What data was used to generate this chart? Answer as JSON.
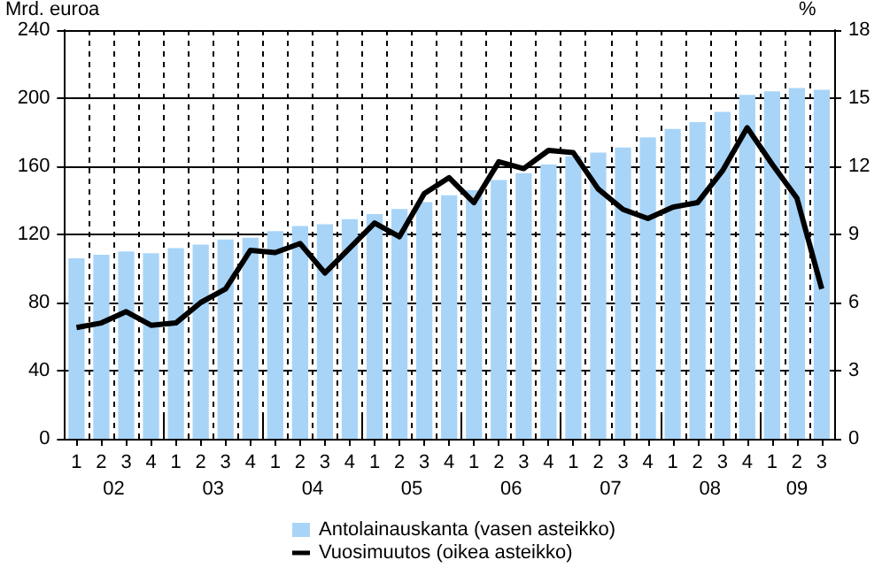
{
  "chart_data": {
    "type": "bar",
    "ylabel": "Mrd. euroa",
    "y2label": "%",
    "categories": [
      "1",
      "2",
      "3",
      "4",
      "1",
      "2",
      "3",
      "4",
      "1",
      "2",
      "3",
      "4",
      "1",
      "2",
      "3",
      "4",
      "1",
      "2",
      "3",
      "4",
      "1",
      "2",
      "3",
      "4",
      "1",
      "2",
      "3",
      "4",
      "1",
      "2",
      "3"
    ],
    "annotations": [
      "02",
      "03",
      "04",
      "05",
      "06",
      "07",
      "08",
      "09"
    ],
    "series": [
      {
        "name": "Antolainauskanta (vasen asteikko)",
        "color": "#a8d4f8",
        "values": [
          106,
          108,
          110,
          109,
          112,
          114,
          117,
          118,
          122,
          125,
          126,
          129,
          132,
          135,
          139,
          143,
          146,
          152,
          156,
          161,
          166,
          168,
          171,
          177,
          182,
          186,
          192,
          202,
          204,
          206,
          205
        ]
      },
      {
        "name": "Vuosimuutos (oikea asteikko)",
        "type": "line",
        "axis": "y2",
        "color": "#000000",
        "marker": "none",
        "values": [
          4.9,
          5.1,
          5.6,
          5.0,
          5.1,
          6.0,
          6.6,
          8.3,
          8.2,
          8.6,
          7.3,
          8.4,
          9.5,
          8.9,
          10.8,
          11.5,
          10.4,
          12.2,
          11.9,
          12.7,
          12.6,
          11.0,
          10.1,
          9.7,
          10.2,
          10.4,
          11.8,
          13.7,
          12.1,
          10.6,
          6.6
        ]
      }
    ],
    "ylim": [
      0,
      240
    ],
    "yticks": [
      0,
      40,
      80,
      120,
      160,
      200,
      240
    ],
    "y2lim": [
      0,
      18
    ],
    "y2ticks": [
      0,
      3,
      6,
      9,
      12,
      15,
      18
    ],
    "grid": true,
    "legend": "bottom"
  }
}
